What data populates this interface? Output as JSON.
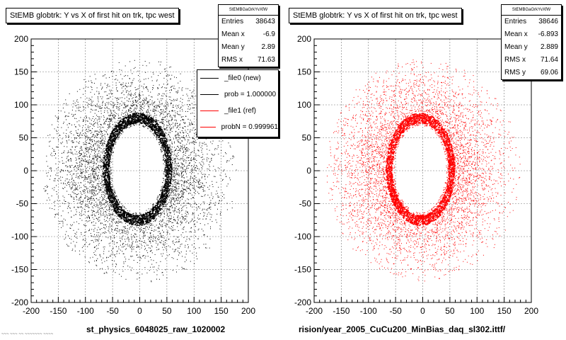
{
  "chart_data": [
    {
      "type": "scatter",
      "title": "StEMB globtrk: Y vs X of first hit on trk, tpc west",
      "xlabel": "st_physics_6048025_raw_1020002",
      "ylabel": "",
      "xlim": [
        -200,
        200
      ],
      "ylim": [
        -200,
        200
      ],
      "xticks": [
        -200,
        -150,
        -100,
        -50,
        0,
        50,
        100,
        150,
        200
      ],
      "yticks": [
        -200,
        -150,
        -100,
        -50,
        0,
        50,
        100,
        150,
        200
      ],
      "grid": true,
      "color": "#000000",
      "series": [
        {
          "name": "_file0 (new)",
          "style": "dense scatter, annulus r≈50–180 with heavy ring at r≈50–60",
          "points": 38643
        }
      ],
      "stats": {
        "name": "StEMBGaGrkYvXfW",
        "rows": [
          {
            "label": "Entries",
            "value": "38643"
          },
          {
            "label": "Mean x",
            "value": "-6.9"
          },
          {
            "label": "Mean y",
            "value": "2.89"
          },
          {
            "label": "RMS x",
            "value": "71.63"
          }
        ]
      },
      "legend": {
        "entries": [
          {
            "label": "_file0 (new)",
            "color": "#000000"
          },
          {
            "label": "prob = 1.000000",
            "color": "#000000"
          },
          {
            "label": "_file1 (ref)",
            "color": "#ff0000"
          },
          {
            "label": "probN = 0.999961",
            "color": "#ff0000"
          }
        ]
      }
    },
    {
      "type": "scatter",
      "title": "StEMB globtrk: Y vs X of first hit on trk, tpc west",
      "xlabel": "rision/year_2005_CuCu200_MinBias_daq_sl302.ittf/",
      "ylabel": "",
      "xlim": [
        -200,
        200
      ],
      "ylim": [
        -200,
        200
      ],
      "xticks": [
        -200,
        -150,
        -100,
        -50,
        0,
        50,
        100,
        150,
        200
      ],
      "yticks": [
        -200,
        -150,
        -100,
        -50,
        0,
        50,
        100,
        150,
        200
      ],
      "grid": true,
      "color": "#ff0000",
      "series": [
        {
          "name": "_file1 (ref)",
          "style": "dense scatter, annulus r≈50–180 with heavy ring at r≈50–60",
          "points": 38646
        }
      ],
      "stats": {
        "name": "StEMBGaGrkYvXfW",
        "rows": [
          {
            "label": "Entries",
            "value": "38646"
          },
          {
            "label": "Mean x",
            "value": "-6.893"
          },
          {
            "label": "Mean y",
            "value": "2.889"
          },
          {
            "label": "RMS x",
            "value": "71.64"
          },
          {
            "label": "RMS y",
            "value": "69.06"
          }
        ]
      }
    }
  ],
  "footnote": "~~~ ~~~ ~~ ~~~~~~~ ~~~~"
}
